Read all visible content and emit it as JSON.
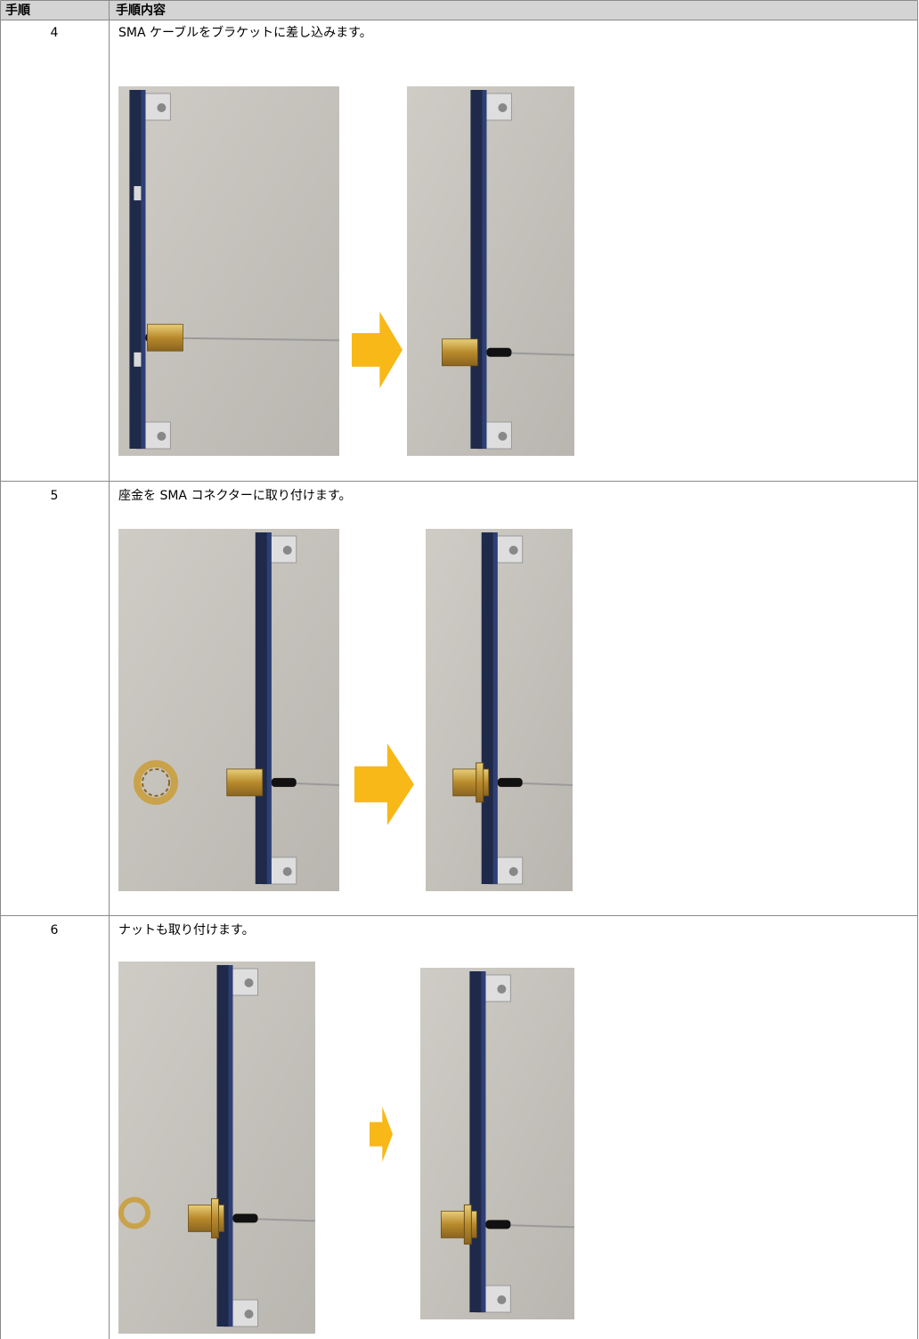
{
  "header": {
    "step": "手順",
    "content": "手順内容"
  },
  "rows": [
    {
      "step": "4",
      "text": "SMA ケーブルをブラケットに差し込みます。"
    },
    {
      "step": "5",
      "text": "座金を SMA コネクターに取り付けます。"
    },
    {
      "step": "6",
      "text": "ナットも取り付けます。"
    }
  ]
}
